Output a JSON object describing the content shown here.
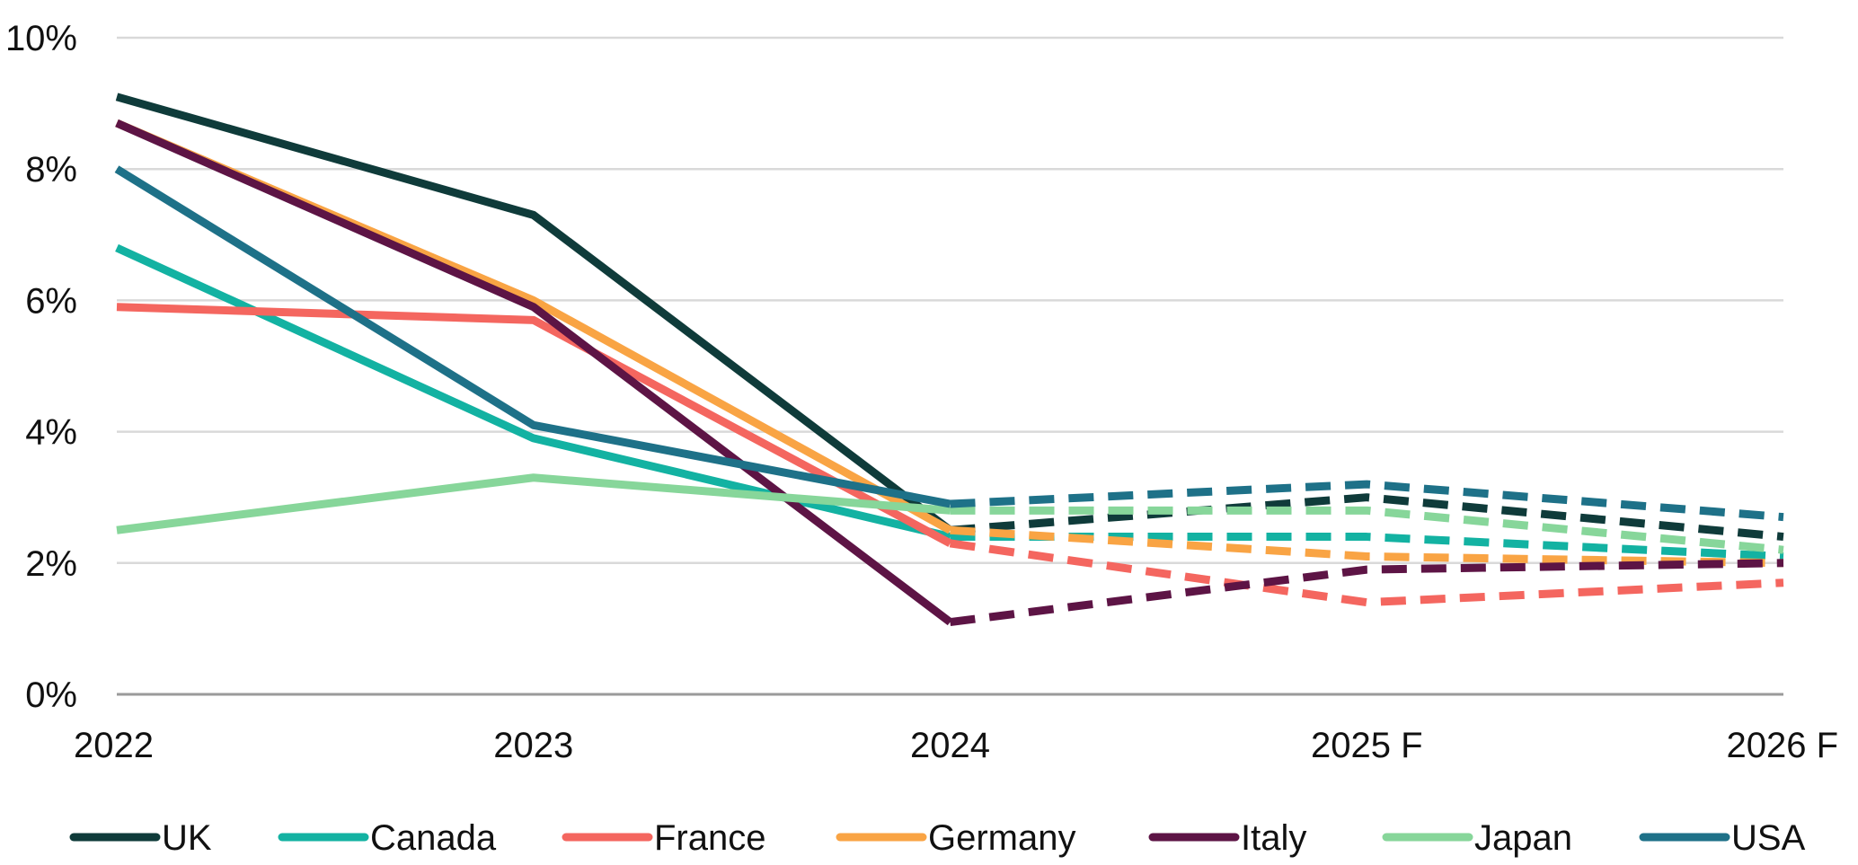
{
  "chart_data": {
    "type": "line",
    "title": "",
    "xlabel": "",
    "ylabel": "",
    "categories": [
      "2022",
      "2023",
      "2024",
      "2025 F",
      "2026 F"
    ],
    "ylim": [
      0,
      10
    ],
    "yticks": [
      0,
      2,
      4,
      6,
      8,
      10
    ],
    "ytick_labels": [
      "0%",
      "2%",
      "4%",
      "6%",
      "8%",
      "10%"
    ],
    "grid": true,
    "legend_position": "bottom",
    "forecast_start_index": 2,
    "forecast_style": "dashed",
    "series": [
      {
        "name": "UK",
        "color": "#0f3b3a",
        "values": [
          9.1,
          7.3,
          2.5,
          3.0,
          2.4
        ]
      },
      {
        "name": "Canada",
        "color": "#13b2a2",
        "values": [
          6.8,
          3.9,
          2.4,
          2.4,
          2.1
        ]
      },
      {
        "name": "France",
        "color": "#f4665f",
        "values": [
          5.9,
          5.7,
          2.3,
          1.4,
          1.7
        ]
      },
      {
        "name": "Germany",
        "color": "#f9a444",
        "values": [
          8.7,
          6.0,
          2.5,
          2.1,
          2.0
        ]
      },
      {
        "name": "Italy",
        "color": "#5d1445",
        "values": [
          8.7,
          5.9,
          1.1,
          1.9,
          2.0
        ]
      },
      {
        "name": "Japan",
        "color": "#87d69a",
        "values": [
          2.5,
          3.3,
          2.8,
          2.8,
          2.2
        ]
      },
      {
        "name": "USA",
        "color": "#1e7188",
        "values": [
          8.0,
          4.1,
          2.9,
          3.2,
          2.7
        ]
      }
    ]
  }
}
